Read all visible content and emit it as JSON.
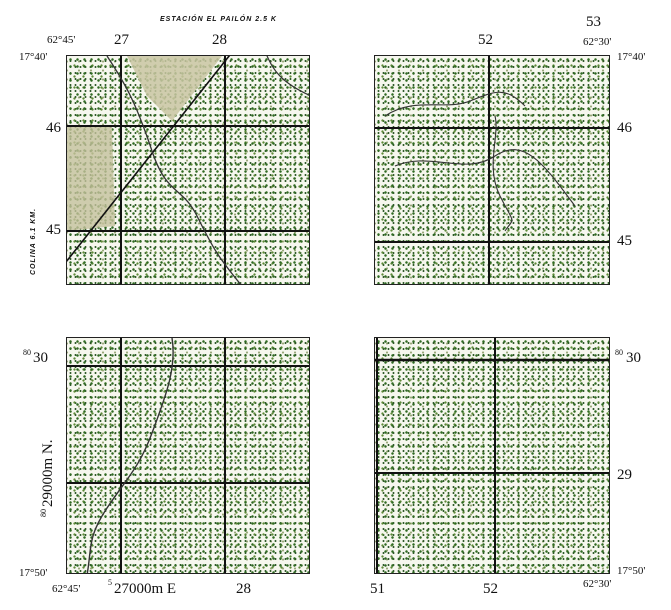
{
  "map": {
    "top_note": "ESTACIÓN EL PAILÓN 2.5 K",
    "left_note": "COLINA 6.1 KM.",
    "tl": {
      "lon": "62°45'",
      "lat": "17°40'",
      "e1": "27",
      "e2": "28",
      "n1": "46",
      "n2": "45"
    },
    "tr": {
      "e1": "52",
      "e2": "53",
      "lon": "62°30'",
      "lat": "17°40'",
      "n1": "46",
      "n2": "45"
    },
    "bl": {
      "n_sup": "80",
      "n1": "30",
      "northing_sup": "80",
      "northing": "29000m N.",
      "lat": "17°50'",
      "lon": "62°45'",
      "easting_sup": "5",
      "easting": "27000m E",
      "e2": "28"
    },
    "br": {
      "n_sup": "80",
      "n1": "30",
      "n2": "29",
      "lat": "17°50'",
      "e1": "51",
      "e2": "52",
      "lon": "62°30'"
    }
  },
  "colors": {
    "vegetation": "#2f6a22",
    "grid": "#111111",
    "paper": "#ffffff"
  }
}
